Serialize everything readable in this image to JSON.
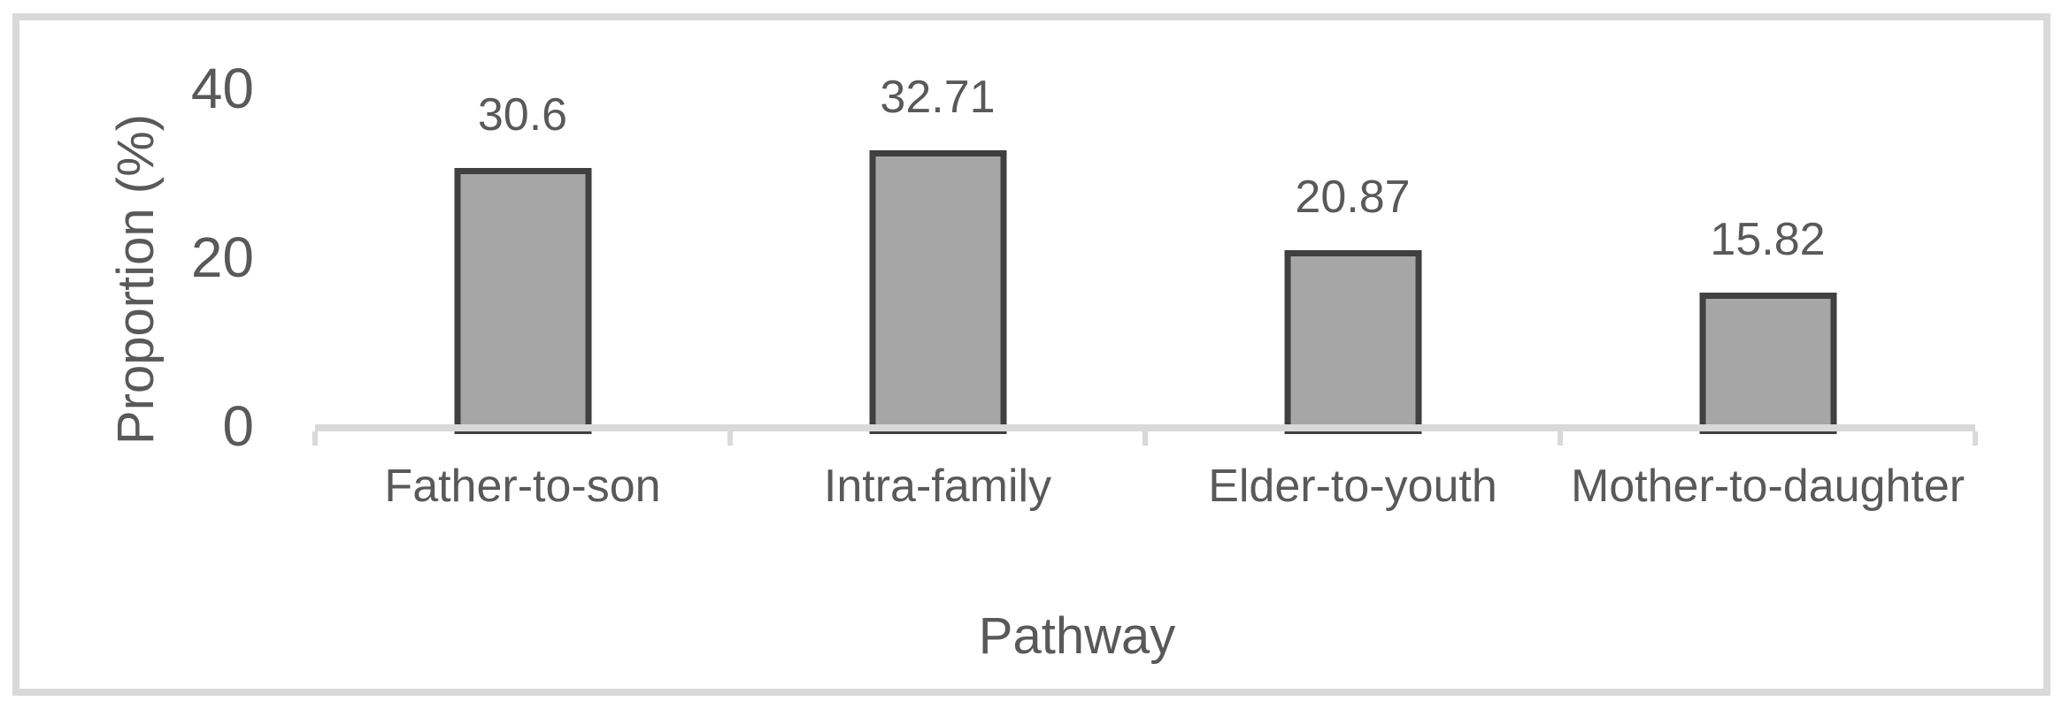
{
  "chart_data": {
    "type": "bar",
    "title": "",
    "categories": [
      "Father-to-son",
      "Intra-family",
      "Elder-to-youth",
      "Mother-to-daughter"
    ],
    "values": [
      30.6,
      32.71,
      20.87,
      15.82
    ],
    "data_labels": [
      "30.6",
      "32.71",
      "20.87",
      "15.82"
    ],
    "xlabel": "Pathway",
    "ylabel": "Proportion (%)",
    "yticks": [
      0,
      20,
      40
    ],
    "ytick_labels": [
      "0",
      "20",
      "40"
    ],
    "ylim": [
      0,
      40
    ],
    "grid": false,
    "legend": false,
    "colors": {
      "bar_fill": "#a6a6a6",
      "bar_border": "#404040",
      "axis_line": "#d9d9d9",
      "frame_border": "#d9d9d9",
      "text": "#595959",
      "background": "#ffffff"
    }
  }
}
